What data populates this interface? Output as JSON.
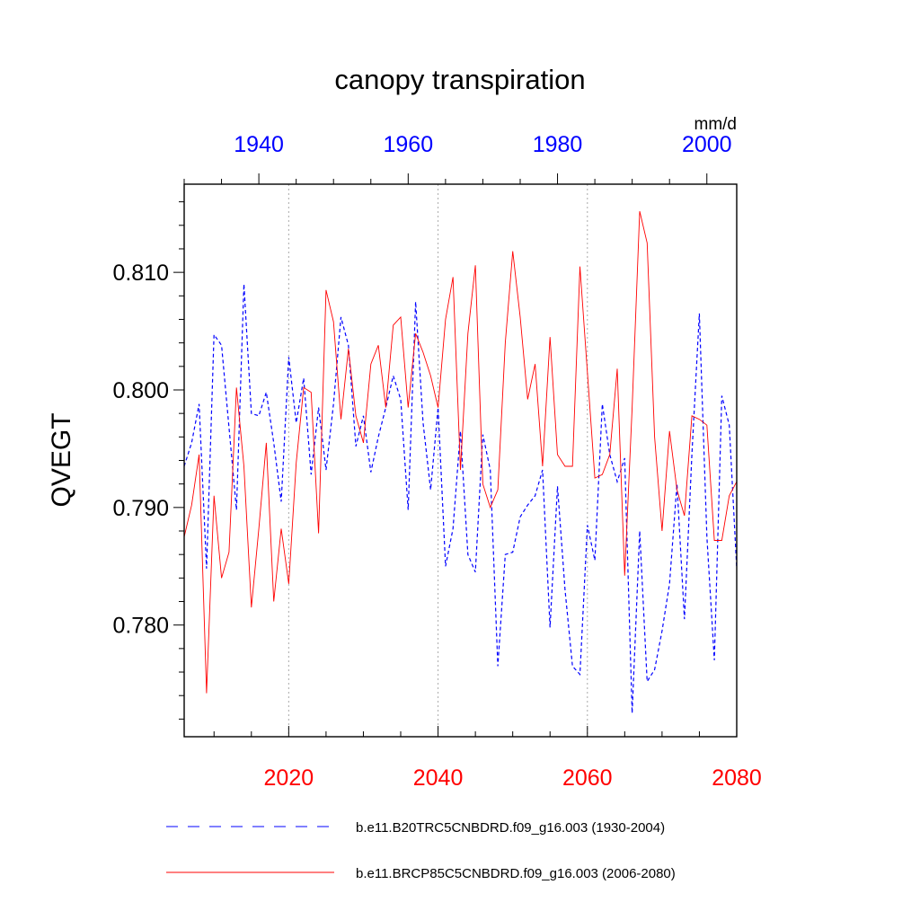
{
  "chart_data": {
    "type": "line",
    "title": "canopy transpiration",
    "ylabel": "QVEGT",
    "units": "mm/d",
    "ylim": [
      0.7705,
      0.8175
    ],
    "yticks": [
      "0.780",
      "0.790",
      "0.800",
      "0.810"
    ],
    "y_tick_values": [
      0.78,
      0.79,
      0.8,
      0.81
    ],
    "bottom_axis": {
      "range": [
        2006,
        2080
      ],
      "ticks": [
        2020,
        2040,
        2060,
        2080
      ],
      "color": "#ff0000"
    },
    "top_axis": {
      "range": [
        1930,
        2004
      ],
      "ticks": [
        1940,
        1960,
        1980,
        2000
      ],
      "color": "#0000ff"
    },
    "grid": "dotted vertical lines at bottom axis ticks",
    "legend_position": "bottom",
    "series": [
      {
        "name": "b.e11.B20TRC5CNBDRD.f09_g16.003 (1930-2004)",
        "color": "#0000ff",
        "style": "dashed",
        "axis": "top",
        "x": [
          1930,
          1931,
          1932,
          1933,
          1934,
          1935,
          1936,
          1937,
          1938,
          1939,
          1940,
          1941,
          1942,
          1943,
          1944,
          1945,
          1946,
          1947,
          1948,
          1949,
          1950,
          1951,
          1952,
          1953,
          1954,
          1955,
          1956,
          1957,
          1958,
          1959,
          1960,
          1961,
          1962,
          1963,
          1964,
          1965,
          1966,
          1967,
          1968,
          1969,
          1970,
          1971,
          1972,
          1973,
          1974,
          1975,
          1976,
          1977,
          1978,
          1979,
          1980,
          1981,
          1982,
          1983,
          1984,
          1985,
          1986,
          1987,
          1988,
          1989,
          1990,
          1991,
          1992,
          1993,
          1994,
          1995,
          1996,
          1997,
          1998,
          1999,
          2000,
          2001,
          2002,
          2003,
          2004
        ],
        "values": [
          0.7935,
          0.7955,
          0.7988,
          0.7848,
          0.8047,
          0.8038,
          0.7968,
          0.7898,
          0.809,
          0.798,
          0.7978,
          0.7998,
          0.7955,
          0.7905,
          0.8028,
          0.7972,
          0.801,
          0.7928,
          0.7985,
          0.7932,
          0.7988,
          0.8062,
          0.8038,
          0.7952,
          0.7978,
          0.793,
          0.796,
          0.7985,
          0.8012,
          0.7992,
          0.7898,
          0.8075,
          0.7972,
          0.7915,
          0.7985,
          0.785,
          0.7882,
          0.7965,
          0.786,
          0.7845,
          0.7962,
          0.7932,
          0.7765,
          0.786,
          0.7862,
          0.7892,
          0.7902,
          0.791,
          0.7932,
          0.7798,
          0.7918,
          0.783,
          0.7765,
          0.7758,
          0.7885,
          0.7855,
          0.7988,
          0.7945,
          0.7922,
          0.7942,
          0.7725,
          0.788,
          0.7752,
          0.7762,
          0.7795,
          0.7835,
          0.792,
          0.7805,
          0.7945,
          0.8065,
          0.7875,
          0.777,
          0.7995,
          0.797,
          0.7848
        ]
      },
      {
        "name": "b.e11.BRCP85C5CNBDRD.f09_g16.003 (2006-2080)",
        "color": "#ff0000",
        "style": "solid",
        "axis": "bottom",
        "x": [
          2006,
          2007,
          2008,
          2009,
          2010,
          2011,
          2012,
          2013,
          2014,
          2015,
          2016,
          2017,
          2018,
          2019,
          2020,
          2021,
          2022,
          2023,
          2024,
          2025,
          2026,
          2027,
          2028,
          2029,
          2030,
          2031,
          2032,
          2033,
          2034,
          2035,
          2036,
          2037,
          2038,
          2039,
          2040,
          2041,
          2042,
          2043,
          2044,
          2045,
          2046,
          2047,
          2048,
          2049,
          2050,
          2051,
          2052,
          2053,
          2054,
          2055,
          2056,
          2057,
          2058,
          2059,
          2060,
          2061,
          2062,
          2063,
          2064,
          2065,
          2066,
          2067,
          2068,
          2069,
          2070,
          2071,
          2072,
          2073,
          2074,
          2075,
          2076,
          2077,
          2078,
          2079,
          2080
        ],
        "values": [
          0.7875,
          0.7902,
          0.7945,
          0.7742,
          0.791,
          0.784,
          0.7862,
          0.8002,
          0.7935,
          0.7815,
          0.7882,
          0.7955,
          0.782,
          0.7882,
          0.7835,
          0.7938,
          0.8002,
          0.7998,
          0.7878,
          0.8085,
          0.8058,
          0.7975,
          0.8035,
          0.7978,
          0.7955,
          0.8022,
          0.8038,
          0.7985,
          0.8055,
          0.8062,
          0.7985,
          0.8048,
          0.8032,
          0.8012,
          0.7985,
          0.806,
          0.8096,
          0.7932,
          0.8048,
          0.8106,
          0.792,
          0.79,
          0.7915,
          0.804,
          0.8118,
          0.8062,
          0.7992,
          0.8022,
          0.7935,
          0.8045,
          0.7945,
          0.7935,
          0.7935,
          0.8105,
          0.8015,
          0.7925,
          0.7928,
          0.7945,
          0.8018,
          0.7842,
          0.7985,
          0.8152,
          0.8125,
          0.796,
          0.788,
          0.7965,
          0.7915,
          0.7893,
          0.7978,
          0.7975,
          0.797,
          0.7872,
          0.7872,
          0.791,
          0.7922
        ]
      }
    ]
  }
}
